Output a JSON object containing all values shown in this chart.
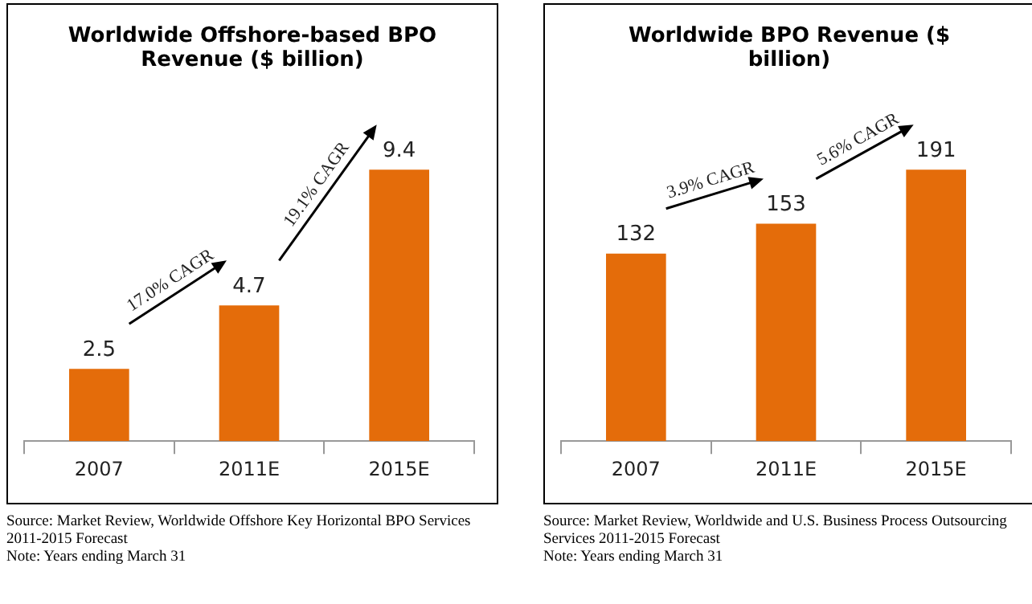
{
  "chart_data": [
    {
      "type": "bar",
      "title": "Worldwide Offshore-based BPO Revenue ($ billion)",
      "categories": [
        "2007",
        "2011E",
        "2015E"
      ],
      "values": [
        2.5,
        4.7,
        9.4
      ],
      "color": "#e46c0a",
      "data_labels": true,
      "annotations": [
        "17.0% CAGR",
        "19.1% CAGR",
        "Source: Market Review, Worldwide Offshore Key Horizontal BPO Services 2011-2015 Forecast",
        "Note: Years ending March 31"
      ]
    },
    {
      "type": "bar",
      "title": "Worldwide BPO Revenue ($ billion)",
      "categories": [
        "2007",
        "2011E",
        "2015E"
      ],
      "values": [
        132,
        153,
        191
      ],
      "color": "#e46c0a",
      "data_labels": true,
      "annotations": [
        "3.9% CAGR",
        "5.6% CAGR",
        "Source: Market Review, Worldwide and U.S. Business Process Outsourcing Services 2011-2015 Forecast",
        "Note: Years ending March 31"
      ]
    }
  ]
}
